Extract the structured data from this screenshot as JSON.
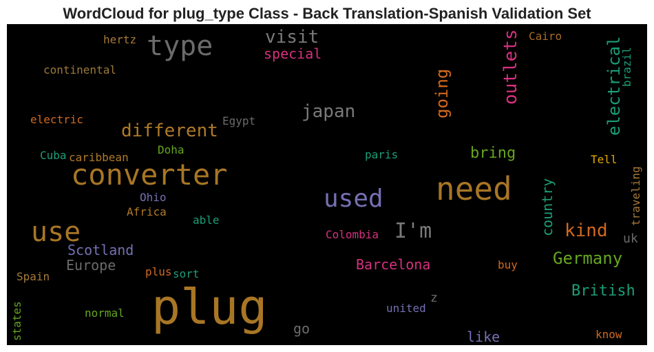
{
  "chart_data": {
    "type": "wordcloud",
    "title": "WordCloud for plug_type Class - Back Translation-Spanish Validation Set",
    "words": [
      {
        "text": "type",
        "color": "#6b6b6b"
      },
      {
        "text": "visit",
        "color": "#7a7a7a"
      },
      {
        "text": "special",
        "color": "#d6307f"
      },
      {
        "text": "hertz",
        "color": "#a87a3a"
      },
      {
        "text": "continental",
        "color": "#9c7a3a"
      },
      {
        "text": "Cairo",
        "color": "#a86a2a"
      },
      {
        "text": "outlets",
        "color": "#d6307f"
      },
      {
        "text": "going",
        "color": "#d2691e"
      },
      {
        "text": "electrical",
        "color": "#1b9e77"
      },
      {
        "text": "brazil",
        "color": "#1b9e77"
      },
      {
        "text": "japan",
        "color": "#7a7a7a"
      },
      {
        "text": "different",
        "color": "#b07a28"
      },
      {
        "text": "electric",
        "color": "#d2691e"
      },
      {
        "text": "Egypt",
        "color": "#6b6b6b"
      },
      {
        "text": "Cuba",
        "color": "#1b9e77"
      },
      {
        "text": "caribbean",
        "color": "#b07a28"
      },
      {
        "text": "Doha",
        "color": "#66a61e"
      },
      {
        "text": "converter",
        "color": "#a87625"
      },
      {
        "text": "paris",
        "color": "#1b9e77"
      },
      {
        "text": "bring",
        "color": "#66a61e"
      },
      {
        "text": "Tell",
        "color": "#e6ab02"
      },
      {
        "text": "need",
        "color": "#a87625"
      },
      {
        "text": "used",
        "color": "#7570b3"
      },
      {
        "text": "country",
        "color": "#1b9e77"
      },
      {
        "text": "traveling",
        "color": "#a87a3a"
      },
      {
        "text": "Ohio",
        "color": "#7570b3"
      },
      {
        "text": "Africa",
        "color": "#b07a28"
      },
      {
        "text": "able",
        "color": "#1b9e77"
      },
      {
        "text": "use",
        "color": "#a87625"
      },
      {
        "text": "I'm",
        "color": "#7a7a7a"
      },
      {
        "text": "kind",
        "color": "#d2691e"
      },
      {
        "text": "Colombia",
        "color": "#d6307f"
      },
      {
        "text": "uk",
        "color": "#6b6b6b"
      },
      {
        "text": "Scotland",
        "color": "#7570b3"
      },
      {
        "text": "Europe",
        "color": "#6b6b6b"
      },
      {
        "text": "Barcelona",
        "color": "#d6307f"
      },
      {
        "text": "Germany",
        "color": "#66a61e"
      },
      {
        "text": "buy",
        "color": "#d2691e"
      },
      {
        "text": "Spain",
        "color": "#a87a3a"
      },
      {
        "text": "plus",
        "color": "#d2691e"
      },
      {
        "text": "sort",
        "color": "#1b9e77"
      },
      {
        "text": "British",
        "color": "#1b9e77"
      },
      {
        "text": "plug",
        "color": "#a87625"
      },
      {
        "text": "z",
        "color": "#6b6b6b"
      },
      {
        "text": "united",
        "color": "#7570b3"
      },
      {
        "text": "normal",
        "color": "#66a61e"
      },
      {
        "text": "states",
        "color": "#66a61e"
      },
      {
        "text": "go",
        "color": "#6b6b6b"
      },
      {
        "text": "like",
        "color": "#7570b3"
      },
      {
        "text": "know",
        "color": "#d2691e"
      }
    ]
  }
}
